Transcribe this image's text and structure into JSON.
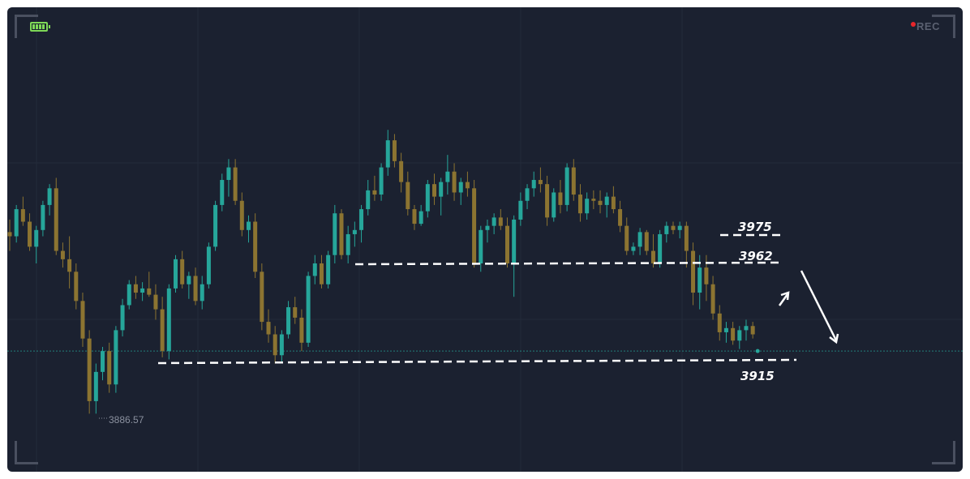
{
  "overlay": {
    "rec_label": "REC"
  },
  "chart_data": {
    "type": "candlestick",
    "y_min": 3860,
    "y_max": 4040,
    "current_price": 3920,
    "candles": [
      [
        3977,
        3983,
        3968,
        3975
      ],
      [
        3975,
        3990,
        3972,
        3988
      ],
      [
        3988,
        3994,
        3980,
        3982
      ],
      [
        3982,
        3986,
        3968,
        3970
      ],
      [
        3970,
        3980,
        3962,
        3978
      ],
      [
        3978,
        3992,
        3975,
        3990
      ],
      [
        3990,
        4000,
        3985,
        3998
      ],
      [
        3998,
        4003,
        3966,
        3968
      ],
      [
        3968,
        3972,
        3960,
        3964
      ],
      [
        3964,
        3975,
        3950,
        3958
      ],
      [
        3958,
        3962,
        3940,
        3944
      ],
      [
        3944,
        3948,
        3922,
        3926
      ],
      [
        3926,
        3930,
        3890,
        3896
      ],
      [
        3896,
        3914,
        3890,
        3910
      ],
      [
        3910,
        3922,
        3906,
        3920
      ],
      [
        3920,
        3924,
        3900,
        3904
      ],
      [
        3904,
        3932,
        3900,
        3930
      ],
      [
        3930,
        3945,
        3927,
        3942
      ],
      [
        3942,
        3954,
        3940,
        3952
      ],
      [
        3952,
        3956,
        3945,
        3948
      ],
      [
        3948,
        3953,
        3944,
        3950
      ],
      [
        3950,
        3958,
        3946,
        3947
      ],
      [
        3947,
        3952,
        3935,
        3940
      ],
      [
        3940,
        3946,
        3917,
        3920
      ],
      [
        3920,
        3952,
        3916,
        3950
      ],
      [
        3950,
        3966,
        3948,
        3964
      ],
      [
        3964,
        3968,
        3950,
        3952
      ],
      [
        3952,
        3958,
        3945,
        3956
      ],
      [
        3956,
        3960,
        3942,
        3944
      ],
      [
        3944,
        3956,
        3940,
        3952
      ],
      [
        3952,
        3972,
        3950,
        3970
      ],
      [
        3970,
        3992,
        3968,
        3990
      ],
      [
        3990,
        4005,
        3987,
        4002
      ],
      [
        4002,
        4012,
        3994,
        4008
      ],
      [
        4008,
        4012,
        3990,
        3992
      ],
      [
        3992,
        3996,
        3975,
        3978
      ],
      [
        3978,
        3985,
        3972,
        3982
      ],
      [
        3982,
        3986,
        3955,
        3958
      ],
      [
        3958,
        3962,
        3930,
        3934
      ],
      [
        3934,
        3940,
        3924,
        3928
      ],
      [
        3928,
        3932,
        3914,
        3918
      ],
      [
        3918,
        3930,
        3915,
        3928
      ],
      [
        3928,
        3944,
        3926,
        3941
      ],
      [
        3941,
        3946,
        3933,
        3936
      ],
      [
        3936,
        3940,
        3920,
        3924
      ],
      [
        3924,
        3958,
        3922,
        3956
      ],
      [
        3956,
        3966,
        3952,
        3962
      ],
      [
        3962,
        3966,
        3950,
        3952
      ],
      [
        3952,
        3968,
        3950,
        3966
      ],
      [
        3966,
        3990,
        3962,
        3986
      ],
      [
        3986,
        3988,
        3964,
        3966
      ],
      [
        3966,
        3980,
        3962,
        3976
      ],
      [
        3976,
        3982,
        3970,
        3978
      ],
      [
        3978,
        3990,
        3972,
        3988
      ],
      [
        3988,
        4002,
        3985,
        3997
      ],
      [
        3997,
        4004,
        3992,
        3995
      ],
      [
        3995,
        4010,
        3992,
        4008
      ],
      [
        4008,
        4026,
        4004,
        4021
      ],
      [
        4021,
        4024,
        4008,
        4011
      ],
      [
        4011,
        4015,
        3996,
        4001
      ],
      [
        4001,
        4006,
        3985,
        3988
      ],
      [
        3988,
        3990,
        3978,
        3981
      ],
      [
        3981,
        3990,
        3980,
        3987
      ],
      [
        3987,
        4002,
        3984,
        4000
      ],
      [
        4000,
        4005,
        3990,
        3994
      ],
      [
        3994,
        4003,
        3985,
        4001
      ],
      [
        4001,
        4014,
        3995,
        4006
      ],
      [
        4006,
        4010,
        3992,
        3996
      ],
      [
        3996,
        4003,
        3990,
        4001
      ],
      [
        4001,
        4006,
        3994,
        3998
      ],
      [
        3998,
        4002,
        3960,
        3962
      ],
      [
        3962,
        3980,
        3958,
        3978
      ],
      [
        3978,
        3983,
        3972,
        3980
      ],
      [
        3980,
        3986,
        3976,
        3984
      ],
      [
        3984,
        3988,
        3978,
        3980
      ],
      [
        3980,
        3984,
        3960,
        3962
      ],
      [
        3962,
        3985,
        3946,
        3983
      ],
      [
        3983,
        3996,
        3980,
        3992
      ],
      [
        3992,
        4000,
        3988,
        3998
      ],
      [
        3998,
        4006,
        3994,
        4002
      ],
      [
        4002,
        4008,
        3996,
        4000
      ],
      [
        4000,
        4004,
        3980,
        3984
      ],
      [
        3984,
        3998,
        3982,
        3996
      ],
      [
        3996,
        4002,
        3986,
        3990
      ],
      [
        3990,
        4010,
        3987,
        4008
      ],
      [
        4008,
        4012,
        3992,
        3995
      ],
      [
        3995,
        4000,
        3982,
        3986
      ],
      [
        3986,
        3996,
        3983,
        3993
      ],
      [
        3993,
        3997,
        3988,
        3992
      ],
      [
        3992,
        3997,
        3986,
        3990
      ],
      [
        3990,
        3996,
        3984,
        3994
      ],
      [
        3994,
        3999,
        3986,
        3988
      ],
      [
        3988,
        3992,
        3977,
        3980
      ],
      [
        3980,
        3984,
        3966,
        3968
      ],
      [
        3968,
        3972,
        3966,
        3970
      ],
      [
        3970,
        3979,
        3966,
        3977
      ],
      [
        3977,
        3978,
        3966,
        3968
      ],
      [
        3968,
        3976,
        3960,
        3962
      ],
      [
        3962,
        3978,
        3960,
        3976
      ],
      [
        3976,
        3982,
        3972,
        3980
      ],
      [
        3980,
        3982,
        3976,
        3978
      ],
      [
        3978,
        3982,
        3974,
        3980
      ],
      [
        3980,
        3982,
        3960,
        3968
      ],
      [
        3968,
        3972,
        3942,
        3948
      ],
      [
        3948,
        3966,
        3940,
        3960
      ],
      [
        3960,
        3966,
        3944,
        3952
      ],
      [
        3952,
        3956,
        3935,
        3938
      ],
      [
        3938,
        3942,
        3925,
        3929
      ],
      [
        3929,
        3934,
        3924,
        3931
      ],
      [
        3931,
        3934,
        3923,
        3925
      ],
      [
        3925,
        3932,
        3921,
        3930
      ],
      [
        3930,
        3935,
        3925,
        3932
      ],
      [
        3932,
        3934,
        3926,
        3928
      ]
    ],
    "levels": [
      {
        "value": 3975,
        "label": "3975"
      },
      {
        "value": 3962,
        "label": "3962"
      },
      {
        "value": 3915,
        "label": "3915"
      }
    ],
    "low_marker": {
      "value": 3886.57,
      "label": "3886.57"
    }
  }
}
